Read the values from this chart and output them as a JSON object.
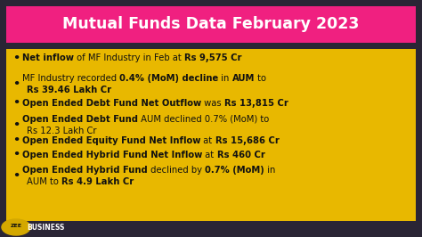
{
  "title": "Mutual Funds Data February 2023",
  "title_bg": "#F02080",
  "title_color": "#FFFFFF",
  "content_bg": "#E8B800",
  "outer_bg": "#2A2535",
  "text_color": "#111111",
  "bullet_items": [
    {
      "line1": [
        [
          "Net inflow",
          true
        ],
        [
          " of MF Industry in Feb at ",
          false
        ],
        [
          "Rs 9,575 Cr",
          true
        ]
      ],
      "line2": null
    },
    {
      "line1": [
        [
          "MF Industry recorded ",
          false
        ],
        [
          "0.4% (MoM) decline",
          true
        ],
        [
          " in ",
          false
        ],
        [
          "AUM",
          true
        ],
        [
          " to",
          false
        ]
      ],
      "line2": [
        [
          "Rs 39.46 Lakh Cr",
          true
        ]
      ]
    },
    {
      "line1": [
        [
          "Open Ended Debt Fund Net Outflow",
          true
        ],
        [
          " was ",
          false
        ],
        [
          "Rs 13,815 Cr",
          true
        ]
      ],
      "line2": null
    },
    {
      "line1": [
        [
          "Open Ended Debt Fund",
          true
        ],
        [
          " AUM declined 0.7% (MoM) to",
          false
        ]
      ],
      "line2": [
        [
          "Rs 12.3 Lakh Cr",
          false
        ]
      ]
    },
    {
      "line1": [
        [
          "Open Ended Equity Fund Net Inflow",
          true
        ],
        [
          " at ",
          false
        ],
        [
          "Rs 15,686 Cr",
          true
        ]
      ],
      "line2": null
    },
    {
      "line1": [
        [
          "Open Ended Hybrid Fund Net Inflow",
          true
        ],
        [
          " at ",
          false
        ],
        [
          "Rs 460 Cr",
          true
        ]
      ],
      "line2": null
    },
    {
      "line1": [
        [
          "Open Ended Hybrid Fund",
          true
        ],
        [
          " declined by ",
          false
        ],
        [
          "0.7% (MoM)",
          true
        ],
        [
          " in",
          false
        ]
      ],
      "line2": [
        [
          "AUM to ",
          false
        ],
        [
          "Rs 4.9 Lakh Cr",
          true
        ]
      ]
    }
  ],
  "logo_circle_color": "#D4A800",
  "logo_zee_color": "#111111",
  "logo_business_color": "#111111",
  "figsize": [
    4.74,
    2.66
  ],
  "dpi": 100
}
